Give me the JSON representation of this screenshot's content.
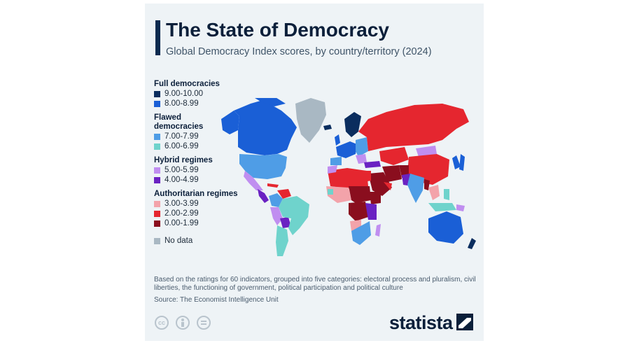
{
  "header": {
    "title": "The State of Democracy",
    "subtitle": "Global Democracy Index scores, by country/territory (2024)"
  },
  "legend": {
    "groups": [
      {
        "label": "Full democracies",
        "items": [
          {
            "range": "9.00-10.00",
            "color": "#0a2d5e"
          },
          {
            "range": "8.00-8.99",
            "color": "#1a5fd6"
          }
        ]
      },
      {
        "label": "Flawed democracies",
        "items": [
          {
            "range": "7.00-7.99",
            "color": "#4f9de6"
          },
          {
            "range": "6.00-6.99",
            "color": "#6fd3cc"
          }
        ]
      },
      {
        "label": "Hybrid regimes",
        "items": [
          {
            "range": "5.00-5.99",
            "color": "#c08ef0"
          },
          {
            "range": "4.00-4.99",
            "color": "#6a22c2"
          }
        ]
      },
      {
        "label": "Authoritarian regimes",
        "items": [
          {
            "range": "3.00-3.99",
            "color": "#f3a3aa"
          },
          {
            "range": "2.00-2.99",
            "color": "#e5262f"
          },
          {
            "range": "0.00-1.99",
            "color": "#8a0e1e"
          }
        ]
      }
    ],
    "nodata": {
      "label": "No data",
      "color": "#a9b8c3"
    }
  },
  "footer": {
    "note": "Based on the ratings for 60 indicators, grouped into five categories: electoral process and pluralism, civil liberties, the functioning of government, political participation and political culture",
    "source": "Source: The Economist Intelligence Unit",
    "brand": "statista"
  },
  "icons": [
    "cc-icon",
    "attribution-icon",
    "no-derivatives-icon",
    "statista-logo-icon"
  ]
}
